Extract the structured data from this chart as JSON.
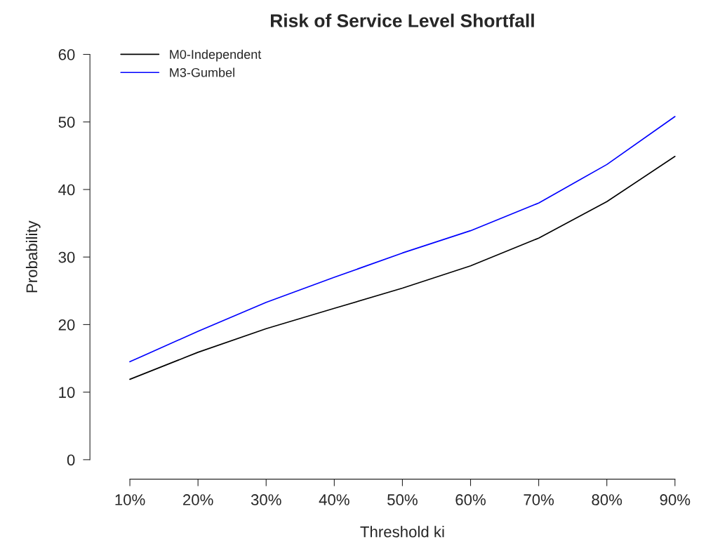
{
  "chart_data": {
    "type": "line",
    "title": "Risk of Service Level Shortfall",
    "xlabel": "Threshold ki",
    "ylabel": "Probability",
    "categories": [
      "10%",
      "20%",
      "30%",
      "40%",
      "50%",
      "60%",
      "70%",
      "80%",
      "90%"
    ],
    "series": [
      {
        "name": "M0-Independent",
        "color": "#000000",
        "values": [
          11.9,
          15.9,
          19.4,
          22.4,
          25.4,
          28.7,
          32.8,
          38.2,
          44.9
        ]
      },
      {
        "name": "M3-Gumbel",
        "color": "#0000ff",
        "values": [
          14.5,
          19.0,
          23.3,
          27.0,
          30.6,
          33.9,
          38.0,
          43.7,
          50.8
        ]
      }
    ],
    "ylim": [
      0,
      60
    ],
    "yticks": [
      0,
      10,
      20,
      30,
      40,
      50,
      60
    ],
    "grid": false,
    "legend": "top left",
    "marker": "none",
    "line_style": "solid"
  }
}
